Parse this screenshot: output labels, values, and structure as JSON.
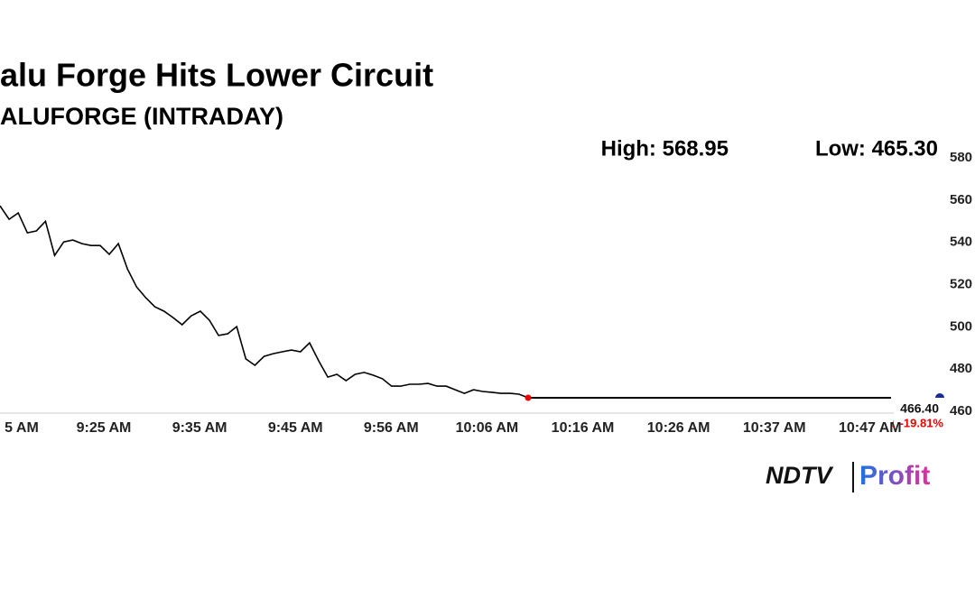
{
  "chart_data": {
    "type": "line",
    "title": "alu Forge Hits Lower Circuit",
    "subtitle": "ALUFORGE (INTRADAY)",
    "high_label": "High: 568.95",
    "low_label": "Low: 465.30",
    "last_value": 466.4,
    "last_value_label": "466.40",
    "change_label": "↓ -19.81%",
    "brand": "NDTV",
    "brand_sub": "Profit",
    "color": "#000000",
    "values": [
      557.3,
      550.9,
      553.9,
      544.5,
      545.4,
      550.0,
      533.8,
      540.2,
      541.1,
      539.4,
      538.5,
      538.5,
      534.3,
      539.4,
      527.4,
      518.9,
      513.8,
      509.5,
      507.4,
      504.4,
      501.0,
      505.2,
      507.4,
      503.1,
      495.9,
      496.7,
      500.1,
      484.8,
      481.8,
      486.0,
      487.3,
      488.2,
      489.0,
      488.2,
      492.4,
      483.9,
      476.2,
      477.5,
      474.5,
      477.5,
      478.4,
      477.1,
      475.4,
      471.9,
      471.9,
      472.8,
      472.8,
      473.2,
      471.9,
      471.9,
      470.2,
      468.5,
      470.2,
      469.4,
      469.0,
      468.5,
      468.5,
      468.1,
      466.4
    ],
    "xticks": [
      "5 AM",
      "9:25 AM",
      "9:35 AM",
      "9:45 AM",
      "9:56 AM",
      "10:06 AM",
      "10:16 AM",
      "10:26 AM",
      "10:37 AM",
      "10:47 AM"
    ],
    "ylim": [
      460,
      580
    ],
    "yticks": [
      460,
      480,
      500,
      520,
      540,
      560,
      580
    ]
  }
}
